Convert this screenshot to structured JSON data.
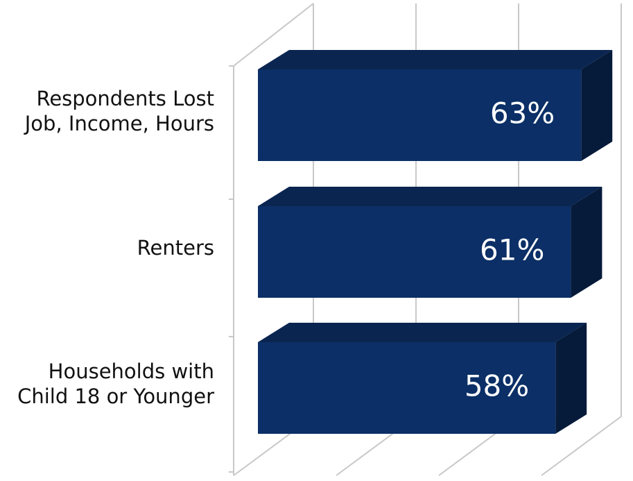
{
  "chart_data": {
    "type": "bar3d_horizontal",
    "categories": [
      "Respondents Lost\nJob, Income, Hours",
      "Renters",
      "Households with\nChild 18 or Younger"
    ],
    "values": [
      63,
      61,
      58
    ],
    "value_labels": [
      "63%",
      "61%",
      "58%"
    ],
    "color": "#0b2f66",
    "xlim": [
      0,
      80
    ],
    "xticks": [
      0,
      20,
      40,
      60
    ],
    "grid": true
  }
}
